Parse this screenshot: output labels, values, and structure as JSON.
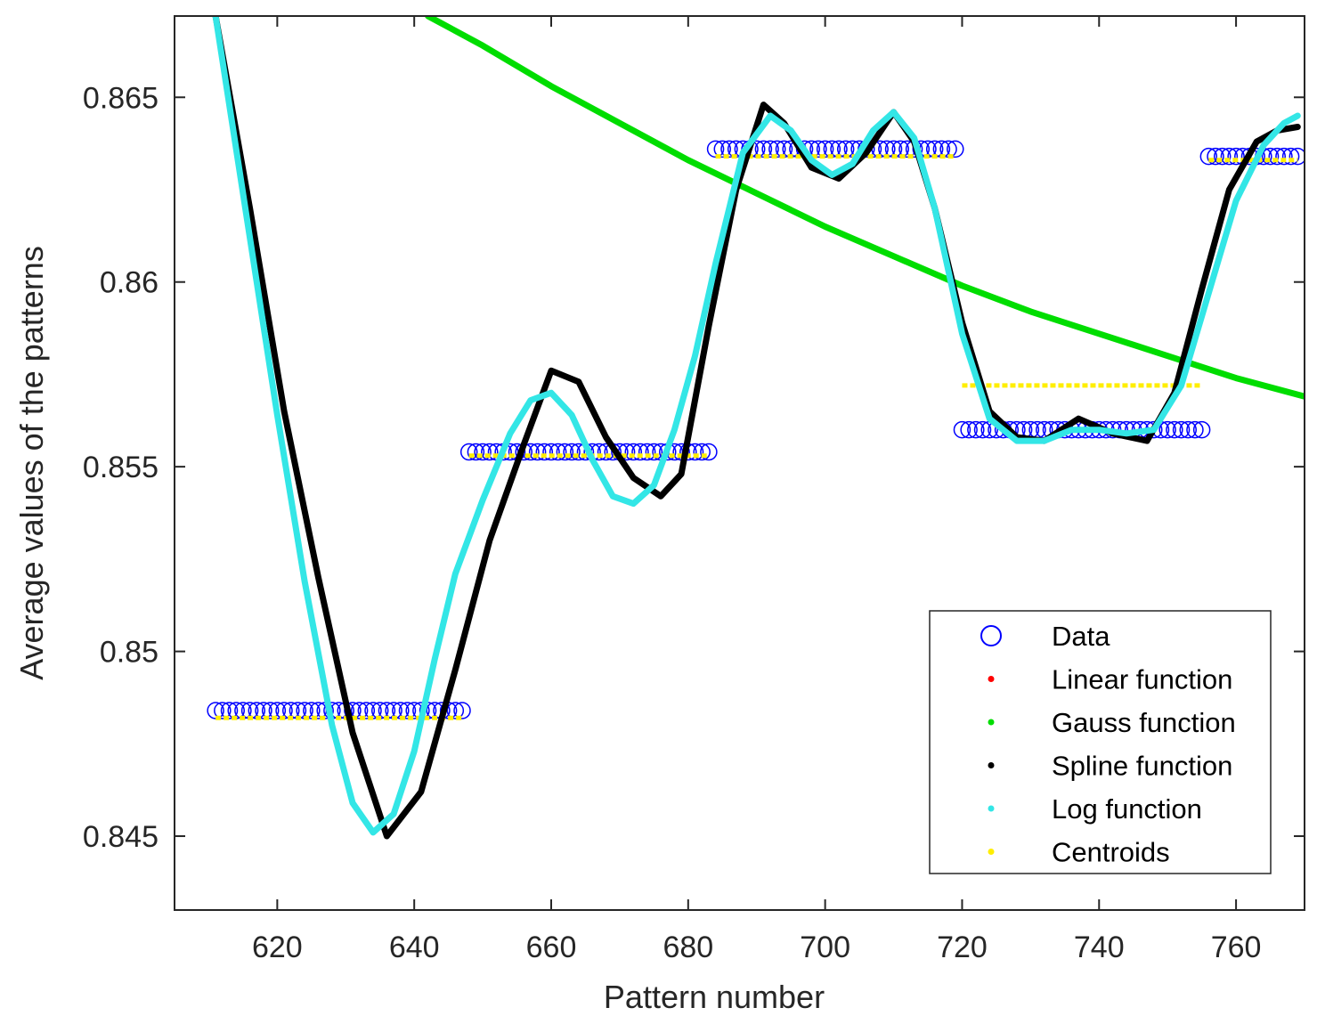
{
  "chart_data": {
    "type": "scatter",
    "title": "",
    "xlabel": "Pattern number",
    "ylabel": "Average values of the patterns",
    "xlim": [
      605,
      770
    ],
    "ylim": [
      0.843,
      0.8672
    ],
    "xticks": [
      620,
      640,
      660,
      680,
      700,
      720,
      740,
      760
    ],
    "xtick_labels": [
      "620",
      "640",
      "660",
      "680",
      "700",
      "720",
      "740",
      "760"
    ],
    "yticks": [
      0.845,
      0.85,
      0.855,
      0.86,
      0.865
    ],
    "ytick_labels": [
      "0.845",
      "0.85",
      "0.855",
      "0.86",
      "0.865"
    ],
    "grid": false,
    "legend_position": "bottom-right",
    "series": [
      {
        "name": "Data",
        "kind": "markers-circle",
        "color": "#0000ff",
        "segments": [
          {
            "x_start": 611,
            "x_end": 647,
            "y": 0.8484
          },
          {
            "x_start": 648,
            "x_end": 683,
            "y": 0.8554
          },
          {
            "x_start": 684,
            "x_end": 719,
            "y": 0.8636
          },
          {
            "x_start": 720,
            "x_end": 755,
            "y": 0.856
          },
          {
            "x_start": 756,
            "x_end": 769,
            "y": 0.8634
          }
        ]
      },
      {
        "name": "Linear function",
        "kind": "dot",
        "color": "#ff0000",
        "points": []
      },
      {
        "name": "Gauss function",
        "kind": "line",
        "color": "#00dd00",
        "x": [
          642,
          650,
          660,
          670,
          680,
          690,
          700,
          710,
          720,
          730,
          740,
          750,
          760,
          770
        ],
        "y": [
          0.8672,
          0.8664,
          0.8653,
          0.8643,
          0.8633,
          0.8624,
          0.8615,
          0.8607,
          0.8599,
          0.8592,
          0.8586,
          0.858,
          0.8574,
          0.8569
        ]
      },
      {
        "name": "Spline function",
        "kind": "line",
        "color": "#000000",
        "x": [
          611,
          616,
          621,
          626,
          631,
          636,
          641,
          646,
          651,
          656,
          660,
          664,
          668,
          672,
          676,
          679,
          683,
          687,
          691,
          694,
          698,
          702,
          706,
          710,
          713,
          716,
          720,
          724,
          728,
          732,
          737,
          742,
          747,
          751,
          755,
          759,
          763,
          766,
          769
        ],
        "y": [
          0.8672,
          0.862,
          0.8565,
          0.852,
          0.8478,
          0.845,
          0.8462,
          0.8495,
          0.853,
          0.8556,
          0.8576,
          0.8573,
          0.8558,
          0.8547,
          0.8542,
          0.8548,
          0.8588,
          0.8625,
          0.8648,
          0.8643,
          0.8631,
          0.8628,
          0.8635,
          0.8646,
          0.8638,
          0.862,
          0.8589,
          0.8565,
          0.8558,
          0.8557,
          0.8563,
          0.8559,
          0.8557,
          0.857,
          0.8598,
          0.8625,
          0.8638,
          0.8641,
          0.8642
        ]
      },
      {
        "name": "Log function",
        "kind": "line",
        "color": "#33e6e6",
        "x": [
          611,
          616,
          620,
          624,
          628,
          631,
          634,
          637,
          640,
          643,
          646,
          650,
          654,
          657,
          660,
          663,
          666,
          669,
          672,
          675,
          678,
          681,
          684,
          688,
          692,
          695,
          698,
          701,
          704,
          707,
          710,
          713,
          716,
          720,
          724,
          728,
          732,
          736,
          740,
          744,
          748,
          752,
          756,
          760,
          764,
          767,
          769
        ],
        "y": [
          0.8672,
          0.8612,
          0.8564,
          0.8519,
          0.848,
          0.8459,
          0.8451,
          0.8456,
          0.8473,
          0.8498,
          0.8521,
          0.8541,
          0.8559,
          0.8568,
          0.857,
          0.8564,
          0.8552,
          0.8542,
          0.854,
          0.8545,
          0.856,
          0.858,
          0.8605,
          0.8635,
          0.8645,
          0.8641,
          0.8633,
          0.8629,
          0.8632,
          0.8641,
          0.8646,
          0.8639,
          0.862,
          0.8586,
          0.8563,
          0.8557,
          0.8557,
          0.856,
          0.856,
          0.8559,
          0.856,
          0.8572,
          0.8597,
          0.8622,
          0.8637,
          0.8643,
          0.8645
        ]
      },
      {
        "name": "Centroids",
        "kind": "dashed-line",
        "color": "#ffee00",
        "segments": [
          {
            "x_start": 611,
            "x_end": 647,
            "y": 0.8482
          },
          {
            "x_start": 648,
            "x_end": 683,
            "y": 0.8553
          },
          {
            "x_start": 684,
            "x_end": 719,
            "y": 0.8634
          },
          {
            "x_start": 720,
            "x_end": 755,
            "y": 0.8572
          },
          {
            "x_start": 756,
            "x_end": 769,
            "y": 0.8633
          }
        ]
      }
    ]
  }
}
